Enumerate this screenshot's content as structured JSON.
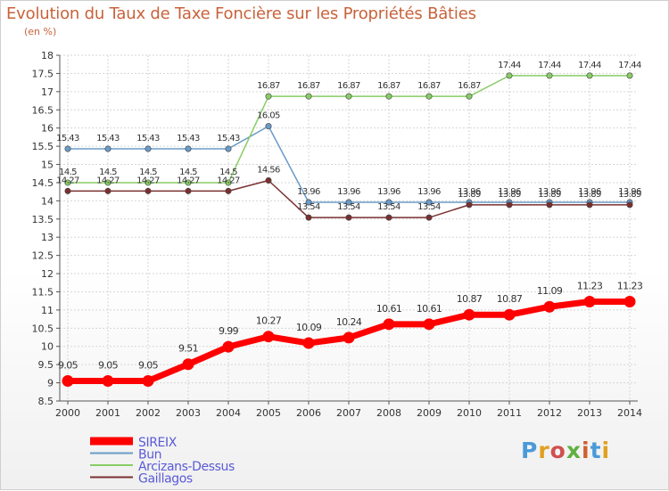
{
  "header": {
    "title": "Evolution du Taux de Taxe Foncière sur les Propriétés Bâties",
    "subtitle": "(en %)"
  },
  "logo": {
    "text": "Proxiti"
  },
  "colors": {
    "title": "#c8623a",
    "grid": "#d6d6d6",
    "axis": "#555555",
    "legend_text": "#5a5ad8"
  },
  "chart_data": {
    "type": "line",
    "title": "Evolution du Taux de Taxe Foncière sur les Propriétés Bâties",
    "ylabel": "(en %)",
    "xlabel": "",
    "x": [
      "2000",
      "2001",
      "2002",
      "2003",
      "2004",
      "2005",
      "2006",
      "2007",
      "2008",
      "2009",
      "2010",
      "2011",
      "2012",
      "2013",
      "2014"
    ],
    "ylim": [
      8.5,
      18
    ],
    "ytick_step": 0.5,
    "ytick_labels": [
      "8.5",
      "9",
      "9.5",
      "10",
      "10.5",
      "11",
      "11.5",
      "12",
      "12.5",
      "13",
      "13.5",
      "14",
      "14.5",
      "15",
      "15.5",
      "16",
      "16.5",
      "17",
      "17.5",
      "18"
    ],
    "grid": true,
    "legend_position": "bottom-left",
    "series": [
      {
        "name": "SIREIX",
        "color": "#ff0000",
        "values": [
          9.05,
          9.05,
          9.05,
          9.51,
          9.99,
          10.27,
          10.09,
          10.24,
          10.61,
          10.61,
          10.87,
          10.87,
          11.09,
          11.23,
          11.23
        ],
        "labels": [
          "9.05",
          "9.05",
          "9.05",
          "9.51",
          "9.99",
          "10.27",
          "10.09",
          "10.24",
          "10.61",
          "10.61",
          "10.87",
          "10.87",
          "11.09",
          "11.23",
          "11.23"
        ]
      },
      {
        "name": "Bun",
        "color": "#6a9bc8",
        "values": [
          15.43,
          15.43,
          15.43,
          15.43,
          15.43,
          16.05,
          13.96,
          13.96,
          13.96,
          13.96,
          13.96,
          13.96,
          13.96,
          13.96,
          13.96
        ],
        "labels": [
          "15.43",
          "15.43",
          "15.43",
          "15.43",
          "15.43",
          "16.05",
          "13.96",
          "13.96",
          "13.96",
          "13.96",
          "13.96",
          "13.96",
          "13.96",
          "13.96",
          "13.96"
        ]
      },
      {
        "name": "Arcizans-Dessus",
        "color": "#88cc66",
        "values": [
          14.5,
          14.5,
          14.5,
          14.5,
          14.5,
          16.87,
          16.87,
          16.87,
          16.87,
          16.87,
          16.87,
          17.44,
          17.44,
          17.44,
          17.44
        ],
        "labels": [
          "14.5",
          "14.5",
          "14.5",
          "14.5",
          "14.5",
          "16.87",
          "16.87",
          "16.87",
          "16.87",
          "16.87",
          "16.87",
          "17.44",
          "17.44",
          "17.44",
          "17.44"
        ]
      },
      {
        "name": "Gaillagos",
        "color": "#7a3030",
        "values": [
          14.27,
          14.27,
          14.27,
          14.27,
          14.27,
          14.56,
          13.54,
          13.54,
          13.54,
          13.54,
          13.89,
          13.89,
          13.89,
          13.89,
          13.89
        ],
        "labels": [
          "14.27",
          "14.27",
          "14.27",
          "14.27",
          "14.27",
          "14.56",
          "13.54",
          "13.54",
          "13.54",
          "13.54",
          "13.89",
          "13.89",
          "13.89",
          "13.89",
          "13.89"
        ]
      }
    ]
  }
}
